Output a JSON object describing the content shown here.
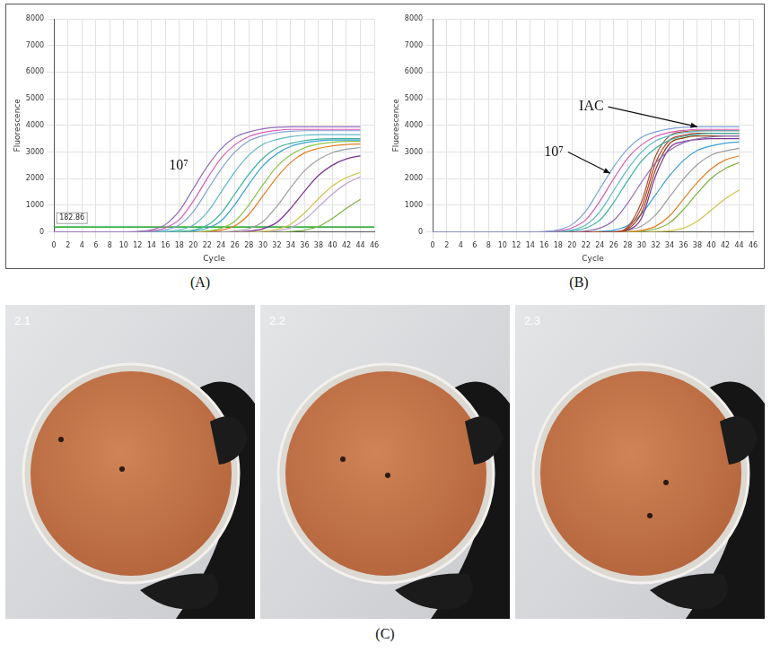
{
  "chart_data": [
    {
      "type": "line",
      "panel_label": "(A)",
      "x_label": "Cycle",
      "y_label": "Fluorescence",
      "grid": true,
      "xlim": [
        0,
        46
      ],
      "xticks": [
        0,
        2,
        4,
        6,
        8,
        10,
        12,
        14,
        16,
        18,
        20,
        22,
        24,
        26,
        28,
        30,
        32,
        34,
        36,
        38,
        40,
        42,
        44,
        46
      ],
      "ylim": [
        0,
        8000
      ],
      "yticks": [
        0,
        1000,
        2000,
        3000,
        4000,
        5000,
        6000,
        7000,
        8000
      ],
      "x": [
        0,
        8,
        12,
        14,
        16,
        18,
        20,
        22,
        24,
        26,
        28,
        30,
        32,
        34,
        36,
        38,
        40,
        42,
        44
      ],
      "threshold": {
        "value": 182.86,
        "color": "#3cb043"
      },
      "annotations": [
        {
          "text": "10⁷",
          "x": 16.5,
          "y": 2500
        }
      ],
      "series": [
        {
          "color": "#8e6bb8",
          "values": [
            0,
            0,
            20,
            79,
            277,
            790,
            1620,
            2449,
            3121,
            3555,
            3753,
            3871,
            3930,
            3950,
            3950,
            3950,
            3950,
            3950,
            3950
          ]
        },
        {
          "color": "#d65db1",
          "values": [
            0,
            0,
            0,
            39,
            154,
            462,
            1155,
            2002,
            2772,
            3273,
            3581,
            3735,
            3812,
            3850,
            3850,
            3850,
            3850,
            3850,
            3850
          ]
        },
        {
          "color": "#7fa0d8",
          "values": [
            0,
            0,
            0,
            19,
            76,
            266,
            760,
            1558,
            2356,
            3002,
            3420,
            3610,
            3724,
            3781,
            3800,
            3800,
            3800,
            3800,
            3800
          ]
        },
        {
          "color": "#5fb7c8",
          "values": [
            0,
            0,
            0,
            0,
            18,
            73,
            256,
            730,
            1497,
            2263,
            2884,
            3285,
            3468,
            3577,
            3632,
            3650,
            3650,
            3650,
            3650
          ]
        },
        {
          "color": "#3ab09e",
          "values": [
            0,
            0,
            0,
            0,
            0,
            18,
            70,
            245,
            700,
            1435,
            2170,
            2765,
            3150,
            3325,
            3430,
            3483,
            3500,
            3500,
            3500
          ]
        },
        {
          "color": "#3a9fd6",
          "values": [
            0,
            0,
            0,
            0,
            0,
            0,
            35,
            138,
            414,
            1035,
            1794,
            2484,
            2933,
            3209,
            3347,
            3416,
            3450,
            3450,
            3450
          ]
        },
        {
          "color": "#8bc34a",
          "values": [
            0,
            0,
            0,
            0,
            0,
            0,
            0,
            34,
            136,
            408,
            1020,
            1768,
            2448,
            2890,
            3162,
            3298,
            3366,
            3400,
            3400
          ]
        },
        {
          "color": "#e67e22",
          "values": [
            0,
            0,
            0,
            0,
            0,
            0,
            0,
            17,
            66,
            231,
            660,
            1353,
            2046,
            2607,
            2970,
            3135,
            3234,
            3284,
            3300
          ]
        },
        {
          "color": "#9e9e9e",
          "values": [
            0,
            0,
            0,
            0,
            0,
            0,
            0,
            0,
            0,
            32,
            128,
            384,
            960,
            1664,
            2304,
            2720,
            2976,
            3104,
            3168
          ]
        },
        {
          "color": "#7b3294",
          "values": [
            0,
            0,
            0,
            0,
            0,
            0,
            0,
            0,
            0,
            0,
            30,
            118,
            354,
            885,
            1534,
            2124,
            2508,
            2744,
            2862
          ]
        },
        {
          "color": "#d4c24a",
          "values": [
            0,
            0,
            0,
            0,
            0,
            0,
            0,
            0,
            0,
            0,
            0,
            24,
            96,
            288,
            720,
            1248,
            1728,
            2040,
            2232
          ]
        },
        {
          "color": "#c7a0d6",
          "values": [
            0,
            0,
            0,
            0,
            0,
            0,
            0,
            0,
            0,
            0,
            0,
            12,
            46,
            161,
            460,
            943,
            1426,
            1817,
            2070
          ]
        },
        {
          "color": "#7cb342",
          "values": [
            0,
            0,
            0,
            0,
            0,
            0,
            0,
            0,
            0,
            0,
            0,
            0,
            0,
            17,
            68,
            204,
            510,
            884,
            1224
          ]
        }
      ]
    },
    {
      "type": "line",
      "panel_label": "(B)",
      "x_label": "Cycle",
      "y_label": "Fluorescence",
      "grid": true,
      "xlim": [
        0,
        46
      ],
      "xticks": [
        0,
        2,
        4,
        6,
        8,
        10,
        12,
        14,
        16,
        18,
        20,
        22,
        24,
        26,
        28,
        30,
        32,
        34,
        36,
        38,
        40,
        42,
        44,
        46
      ],
      "ylim": [
        0,
        8000
      ],
      "yticks": [
        0,
        1000,
        2000,
        3000,
        4000,
        5000,
        6000,
        7000,
        8000
      ],
      "x": [
        0,
        8,
        12,
        14,
        16,
        18,
        20,
        22,
        24,
        26,
        28,
        30,
        32,
        34,
        36,
        38,
        40,
        42,
        44
      ],
      "annotations": [
        {
          "text": "IAC",
          "x": 21,
          "y": 4700,
          "arrow_to": [
            38,
            3950
          ]
        },
        {
          "text": "10⁷",
          "x": 16,
          "y": 3000,
          "arrow_to": [
            25.5,
            2200
          ]
        }
      ],
      "series": [
        {
          "color": "#7fa0d8",
          "values": [
            0,
            0,
            0,
            0,
            20,
            79,
            277,
            790,
            1620,
            2449,
            3121,
            3555,
            3753,
            3871,
            3930,
            3950,
            3950,
            3950,
            3950
          ]
        },
        {
          "color": "#d65db1",
          "values": [
            0,
            0,
            0,
            0,
            0,
            39,
            154,
            462,
            1155,
            2002,
            2772,
            3273,
            3581,
            3735,
            3812,
            3850,
            3850,
            3850,
            3850
          ]
        },
        {
          "color": "#5fb7c8",
          "values": [
            0,
            0,
            0,
            0,
            0,
            19,
            76,
            266,
            760,
            1558,
            2356,
            3002,
            3420,
            3610,
            3724,
            3781,
            3800,
            3800,
            3800
          ]
        },
        {
          "color": "#3ab09e",
          "values": [
            0,
            0,
            0,
            0,
            0,
            0,
            37,
            148,
            444,
            1110,
            1924,
            2664,
            3145,
            3441,
            3589,
            3663,
            3700,
            3700,
            3700
          ]
        },
        {
          "color": "#8e6bb8",
          "values": [
            0,
            0,
            0,
            0,
            0,
            0,
            0,
            36,
            144,
            432,
            1080,
            1872,
            2592,
            3060,
            3348,
            3492,
            3564,
            3600,
            3600
          ]
        },
        {
          "color": "#a0522d",
          "values": [
            0,
            0,
            0,
            0,
            0,
            0,
            0,
            0,
            0,
            0,
            190,
            1140,
            2850,
            3610,
            3762,
            3800,
            3800,
            3800,
            3800
          ]
        },
        {
          "color": "#c0392b",
          "values": [
            0,
            0,
            0,
            0,
            0,
            0,
            0,
            0,
            0,
            0,
            148,
            925,
            2590,
            3441,
            3626,
            3700,
            3700,
            3700,
            3700
          ]
        },
        {
          "color": "#8b4513",
          "values": [
            0,
            0,
            0,
            0,
            0,
            0,
            0,
            0,
            0,
            0,
            108,
            720,
            2340,
            3312,
            3528,
            3600,
            3600,
            3600,
            3600
          ]
        },
        {
          "color": "#7b3294",
          "values": [
            0,
            0,
            0,
            0,
            0,
            0,
            0,
            0,
            0,
            0,
            70,
            525,
            2100,
            3150,
            3395,
            3465,
            3500,
            3500,
            3500
          ]
        },
        {
          "color": "#3a9fd6",
          "values": [
            0,
            0,
            0,
            0,
            0,
            0,
            0,
            0,
            17,
            68,
            238,
            680,
            1394,
            2108,
            2686,
            3060,
            3230,
            3332,
            3383
          ]
        },
        {
          "color": "#9e9e9e",
          "values": [
            0,
            0,
            0,
            0,
            0,
            0,
            0,
            0,
            0,
            16,
            64,
            224,
            640,
            1312,
            1984,
            2528,
            2880,
            3040,
            3136
          ]
        },
        {
          "color": "#e67e22",
          "values": [
            0,
            0,
            0,
            0,
            0,
            0,
            0,
            0,
            0,
            0,
            15,
            60,
            210,
            600,
            1230,
            1860,
            2370,
            2700,
            2850
          ]
        },
        {
          "color": "#7cb342",
          "values": [
            0,
            0,
            0,
            0,
            0,
            0,
            0,
            0,
            0,
            0,
            0,
            28,
            112,
            336,
            840,
            1456,
            2016,
            2380,
            2604
          ]
        },
        {
          "color": "#d4c24a",
          "values": [
            0,
            0,
            0,
            0,
            0,
            0,
            0,
            0,
            0,
            0,
            0,
            0,
            10,
            40,
            140,
            400,
            820,
            1240,
            1580
          ]
        }
      ]
    }
  ],
  "photos": {
    "panel_label": "(C)",
    "items": [
      "2.1",
      "2.2",
      "2.3"
    ]
  }
}
